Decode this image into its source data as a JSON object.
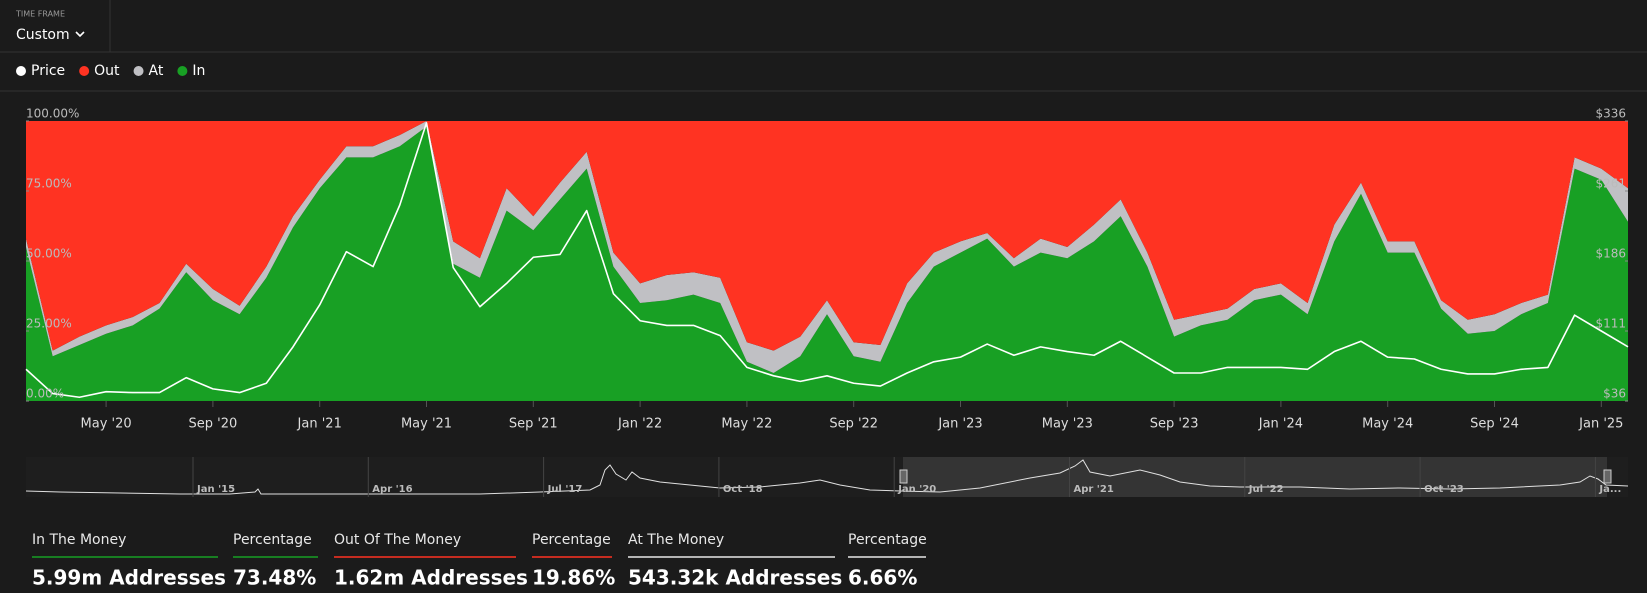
{
  "time_frame": {
    "label": "TIME FRAME",
    "value": "Custom"
  },
  "chart_data": {
    "type": "area",
    "x": [
      1,
      2,
      3,
      4,
      5,
      6,
      7,
      8,
      9,
      10,
      11,
      12,
      13,
      14,
      15,
      16,
      17,
      18,
      19,
      20,
      21,
      22,
      23,
      24,
      25,
      26,
      27,
      28,
      29,
      30,
      31,
      32,
      33,
      34,
      35,
      36,
      37,
      38,
      39,
      40,
      41,
      42,
      43,
      44,
      45,
      46,
      47,
      48,
      49,
      50,
      51,
      52,
      53,
      54,
      55,
      56,
      57,
      58,
      59,
      60,
      61
    ],
    "xlim": [
      1,
      61
    ],
    "xticks": [
      {
        "value": 4,
        "label": "May '20"
      },
      {
        "value": 8,
        "label": "Sep '20"
      },
      {
        "value": 12,
        "label": "Jan '21"
      },
      {
        "value": 16,
        "label": "May '21"
      },
      {
        "value": 20,
        "label": "Sep '21"
      },
      {
        "value": 24,
        "label": "Jan '22"
      },
      {
        "value": 28,
        "label": "May '22"
      },
      {
        "value": 32,
        "label": "Sep '22"
      },
      {
        "value": 36,
        "label": "Jan '23"
      },
      {
        "value": 40,
        "label": "May '23"
      },
      {
        "value": 44,
        "label": "Sep '23"
      },
      {
        "value": 48,
        "label": "Jan '24"
      },
      {
        "value": 52,
        "label": "May '24"
      },
      {
        "value": 56,
        "label": "Sep '24"
      },
      {
        "value": 60,
        "label": "Jan '25"
      }
    ],
    "ylim": [
      0,
      100
    ],
    "yticks": [
      {
        "value": 0,
        "label": "0.00%"
      },
      {
        "value": 25,
        "label": "25.00%"
      },
      {
        "value": 50,
        "label": "50.00%"
      },
      {
        "value": 75,
        "label": "75.00%"
      },
      {
        "value": 100,
        "label": "100.00%"
      }
    ],
    "y2lim": [
      36,
      336
    ],
    "y2ticks": [
      {
        "value": 36,
        "label": "$36"
      },
      {
        "value": 111,
        "label": "$111"
      },
      {
        "value": 186,
        "label": "$186"
      },
      {
        "value": 261,
        "label": "$261"
      },
      {
        "value": 336,
        "label": "$336"
      }
    ],
    "series": [
      {
        "name": "Price",
        "color": "#ffffff",
        "axis": "y2",
        "values": [
          70,
          44,
          40,
          46,
          45,
          45,
          61,
          49,
          45,
          55,
          94,
          139,
          196,
          180,
          246,
          334,
          179,
          137,
          162,
          190,
          193,
          240,
          151,
          122,
          117,
          117,
          106,
          72,
          63,
          57,
          63,
          55,
          52,
          66,
          78,
          83,
          97,
          85,
          94,
          89,
          85,
          100,
          83,
          66,
          66,
          72,
          72,
          72,
          70,
          89,
          100,
          83,
          81,
          70,
          65,
          65,
          70,
          72,
          128,
          111,
          94
        ]
      },
      {
        "name": "Out",
        "color": "#ff3322",
        "values": [
          42,
          82,
          77,
          73,
          70,
          65,
          51,
          60,
          66,
          52,
          34,
          21,
          9,
          9,
          5,
          0,
          43,
          49,
          24,
          34,
          22,
          11,
          47,
          58,
          55,
          54,
          56,
          79,
          82,
          77,
          64,
          79,
          80,
          58,
          47,
          43,
          40,
          49,
          42,
          45,
          37,
          28,
          47,
          71,
          69,
          67,
          60,
          58,
          65,
          37,
          22,
          43,
          43,
          64,
          71,
          69,
          65,
          62,
          13,
          17,
          24
        ]
      },
      {
        "name": "At",
        "color": "#c0c0c4",
        "values": [
          3,
          2,
          3,
          3,
          3,
          2,
          3,
          4,
          3,
          4,
          4,
          3,
          4,
          4,
          4,
          2,
          8,
          7,
          8,
          5,
          6,
          6,
          5,
          7,
          9,
          8,
          9,
          7,
          8,
          7,
          5,
          5,
          6,
          7,
          5,
          4,
          2,
          3,
          5,
          4,
          6,
          6,
          5,
          6,
          4,
          4,
          4,
          4,
          4,
          6,
          4,
          4,
          4,
          3,
          5,
          6,
          4,
          3,
          4,
          4,
          12
        ]
      },
      {
        "name": "In",
        "color": "#18a024",
        "values": [
          55,
          16,
          20,
          24,
          27,
          33,
          46,
          36,
          31,
          44,
          62,
          76,
          87,
          87,
          91,
          98,
          49,
          44,
          68,
          61,
          72,
          83,
          48,
          35,
          36,
          38,
          35,
          14,
          10,
          16,
          31,
          16,
          14,
          35,
          48,
          53,
          58,
          48,
          53,
          51,
          57,
          66,
          48,
          23,
          27,
          29,
          36,
          38,
          31,
          57,
          74,
          53,
          53,
          33,
          24,
          25,
          31,
          35,
          83,
          79,
          64
        ]
      }
    ]
  },
  "navigator": {
    "labels": [
      "Jan '15",
      "Apr '16",
      "Jul '17",
      "Oct '18",
      "Jan '20",
      "Apr '21",
      "Jul '22",
      "Oct '23",
      "Ja..."
    ]
  },
  "summary": [
    {
      "label": "In The Money",
      "value": "5.99m Addresses",
      "color": "#18a024"
    },
    {
      "label": "Percentage",
      "value": "73.48%",
      "color": "#18a024"
    },
    {
      "label": "Out Of The Money",
      "value": "1.62m Addresses",
      "color": "#ff3322"
    },
    {
      "label": "Percentage",
      "value": "19.86%",
      "color": "#ff3322"
    },
    {
      "label": "At The Money",
      "value": "543.32k Addresses",
      "color": "#e8e8e8"
    },
    {
      "label": "Percentage",
      "value": "6.66%",
      "color": "#e8e8e8"
    }
  ]
}
